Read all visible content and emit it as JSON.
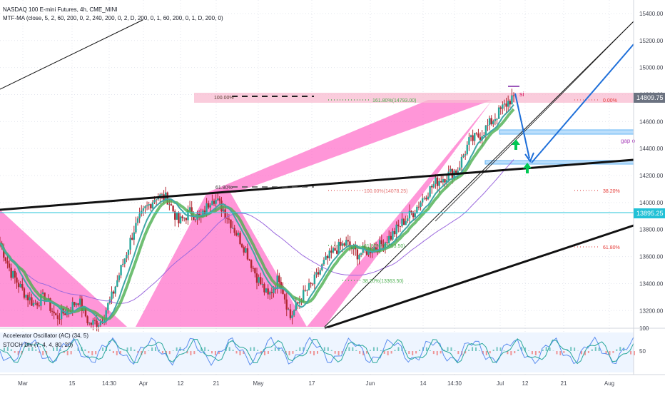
{
  "header": {
    "title": "NASDAQ 100 E-mini Futures, 4h, CME_MINI",
    "indicator": "MTF-MA (close, 5, 2, 60, 200, 0, 2, 240, 200, 0, 2, D, 200, 0, 1, 60, 200, 0, 1, D, 200, 0)"
  },
  "sub_indicators": {
    "ac": "Accelerator Oscillator (AC) (34, 5)",
    "stoch": "STOCH Div (7, 4, 4, 80, 20)"
  },
  "price_tags": {
    "last": "14809.75",
    "level": "13895.25"
  },
  "annotations": {
    "si": "si",
    "gap": "gap o"
  },
  "fib_labels": {
    "top_100": "100.00%",
    "ext_1618": "161.80%(14793.00)",
    "zero": "0.00%",
    "r618": "61.80%",
    "mid_100": "100.00%(14078.25)",
    "r382": "38.20%",
    "lower_618": "61.80%(13653.50)",
    "lower_382": "38.20%(13363.50)",
    "right_618": "61.80%"
  },
  "colors": {
    "pink_fill": "#ff69c8",
    "fib_zone": "#f8bbd0",
    "blue_arrow": "#1e6fd9",
    "green_ma": "#4caf50",
    "teal_ma": "#3fa7a7",
    "purple_ma": "#9c6ade",
    "level_line": "#26c6da",
    "green_arrow": "#00c853",
    "stoch_band": "#eef5ff"
  },
  "chart_data": {
    "type": "line",
    "title": "NASDAQ 100 E-mini Futures, 4h, CME_MINI",
    "xlabel": "",
    "ylabel": "",
    "ylim": [
      13080,
      15500
    ],
    "x_ticks": [
      "Mar",
      "15",
      "14:30",
      "Apr",
      "12",
      "21",
      "May",
      "17",
      "Jun",
      "14",
      "14:30",
      "Jul",
      "12",
      "21",
      "Aug"
    ],
    "y_ticks": [
      13200,
      13400,
      13600,
      13800,
      14000,
      14200,
      14400,
      14600,
      14800,
      15000,
      15200,
      15400
    ],
    "sub_y_ticks": [
      100,
      50
    ],
    "grid": true,
    "series": [
      {
        "values": [
          13700,
          13480,
          13350,
          13250,
          13300,
          13150,
          13200,
          13280,
          13100,
          13120,
          13300,
          13550,
          13800,
          13950,
          14050,
          14030,
          13850,
          13930,
          13880,
          14050,
          13950,
          13800,
          13650,
          13450,
          13300,
          13450,
          13150,
          13300,
          13400,
          13550,
          13650,
          13700,
          13620,
          13650,
          13680,
          13750,
          13850,
          13930,
          14050,
          14150,
          14200,
          14250,
          14450,
          14500,
          14600,
          14700,
          14790
        ]
      }
    ]
  }
}
